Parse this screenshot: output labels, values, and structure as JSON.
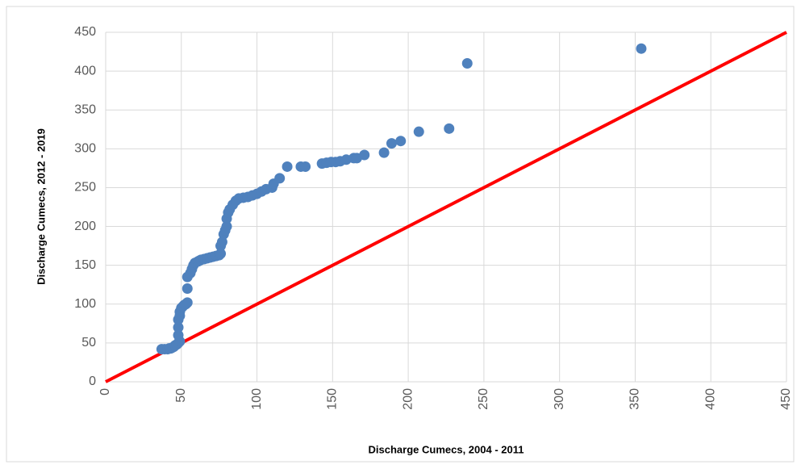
{
  "chart_data": {
    "type": "scatter",
    "x_label": "Discharge Cumecs, 2004 - 2011",
    "y_label": "Discharge Cumecs, 2012 - 2019",
    "xlim": [
      0,
      450
    ],
    "ylim": [
      0,
      450
    ],
    "xticks": [
      0,
      50,
      100,
      150,
      200,
      250,
      300,
      350,
      400,
      450
    ],
    "yticks": [
      0,
      50,
      100,
      150,
      200,
      250,
      300,
      350,
      400,
      450
    ],
    "grid": true,
    "series": [
      {
        "color": "#4f81bd",
        "x": [
          37,
          39,
          41,
          42,
          43,
          44,
          45,
          46,
          47,
          48,
          49,
          48,
          48,
          48,
          49,
          49,
          50,
          51,
          52,
          53,
          54,
          54,
          54,
          56,
          57,
          58,
          59,
          61,
          62,
          63,
          65,
          67,
          69,
          71,
          73,
          75,
          76,
          76,
          77,
          78,
          79,
          80,
          80,
          81,
          82,
          84,
          86,
          88,
          91,
          94,
          97,
          100,
          103,
          106,
          110,
          111,
          115,
          120,
          129,
          132,
          143,
          146,
          149,
          152,
          155,
          159,
          164,
          166,
          171,
          184,
          189,
          195,
          207,
          227,
          239,
          354
        ],
        "values": [
          42,
          42,
          42,
          43,
          43,
          44,
          45,
          47,
          48,
          50,
          52,
          60,
          70,
          80,
          85,
          90,
          95,
          97,
          99,
          100,
          102,
          120,
          135,
          140,
          145,
          150,
          153,
          155,
          156,
          157,
          158,
          159,
          160,
          161,
          162,
          163,
          165,
          175,
          180,
          190,
          195,
          200,
          210,
          218,
          222,
          228,
          233,
          236,
          237,
          238,
          240,
          242,
          245,
          248,
          250,
          255,
          262,
          277,
          277,
          277,
          281,
          282,
          283,
          283,
          284,
          286,
          288,
          288,
          292,
          295,
          307,
          310,
          322,
          326,
          410,
          429
        ]
      }
    ],
    "reference_line": {
      "color": "#ff0000",
      "x": [
        0,
        450
      ],
      "values": [
        0,
        450
      ]
    }
  }
}
